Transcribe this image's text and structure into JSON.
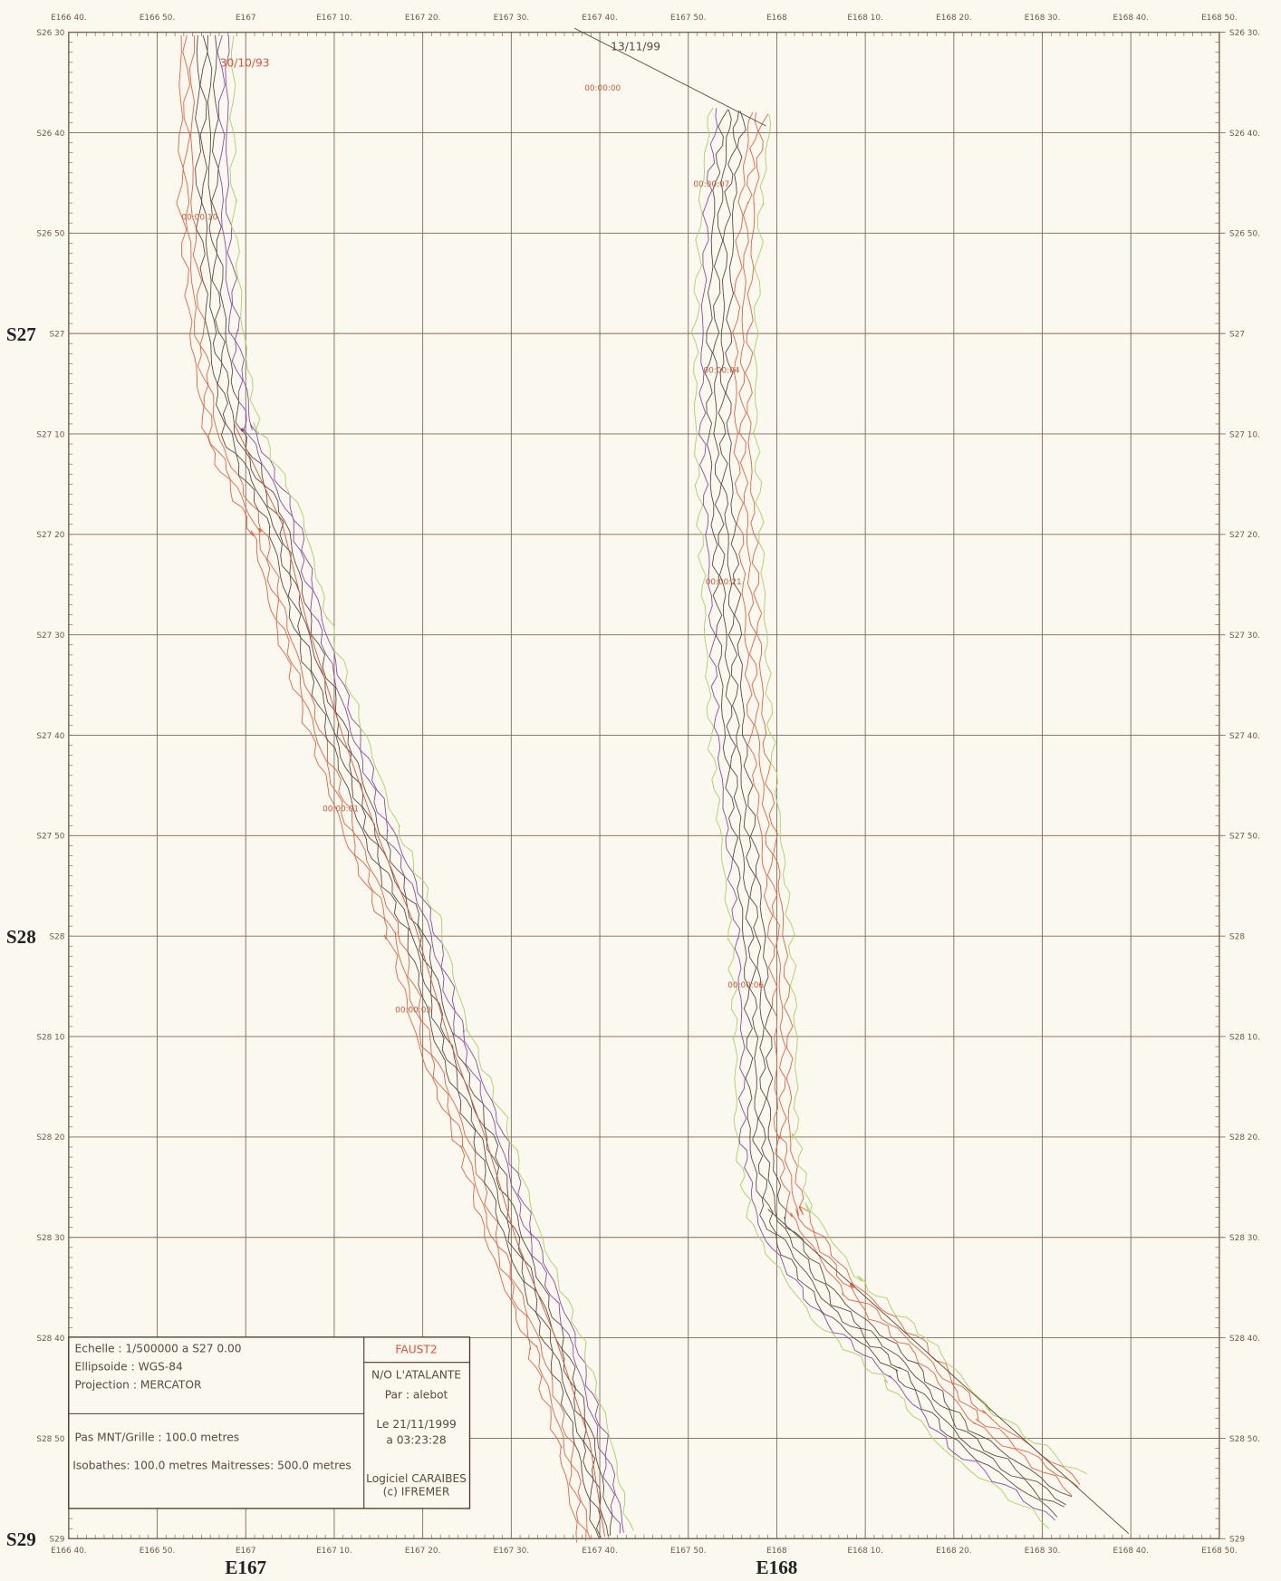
{
  "map": {
    "top_labels": [
      "E166 40.",
      "E166 50.",
      "E167",
      "E167 10.",
      "E167 20.",
      "E167 30.",
      "E167 40.",
      "E167 50.",
      "E168",
      "E168 10.",
      "E168 20.",
      "E168 30.",
      "E168 40.",
      "E168 50."
    ],
    "bottom_labels": [
      "E166 40.",
      "E166 50.",
      "E167",
      "E167 10.",
      "E167 20.",
      "E167 30.",
      "E167 40.",
      "E167 50.",
      "E168",
      "E168 10.",
      "E168 20.",
      "E168 30.",
      "E168 40.",
      "E168 50."
    ],
    "left_labels": [
      "S26 30",
      "S26 40",
      "S26 50",
      "S27",
      "S27 10",
      "S27 20",
      "S27 30",
      "S27 40",
      "S27 50",
      "S28",
      "S28 10",
      "S28 20",
      "S28 30",
      "S28 40",
      "S28 50",
      "S29"
    ],
    "right_labels": [
      "S26 30.",
      "S26 40.",
      "S26 50.",
      "S27",
      "S27 10.",
      "S27 20.",
      "S27 30.",
      "S27 40.",
      "S27 50.",
      "S28",
      "S28 10.",
      "S28 20.",
      "S28 30.",
      "S28 40.",
      "S28 50.",
      "S29"
    ],
    "big_lat_labels": [
      "S27",
      "S28",
      "S29"
    ],
    "big_lon_labels": [
      "E167",
      "E168"
    ],
    "annotations": [
      "30/10/93",
      "13/11/99"
    ],
    "time_labels": [
      "00:00:10",
      "00:00:00",
      "00:00:07",
      "00:00:04",
      "00:00:21",
      "00:00:01",
      "00:00:03",
      "00:00:06"
    ]
  },
  "legend_box": {
    "left": [
      "Echelle : 1/500000 a S27 0.00",
      "Ellipsoide : WGS-84",
      "Projection : MERCATOR",
      "Pas MNT/Grille : 100.0 metres",
      "Isobathes: 100.0 metres  Maitresses:  500.0 metres"
    ],
    "right": [
      "FAUST2",
      "N/O L'ATALANTE",
      "Par : alebot",
      "Le 21/11/1999",
      "a 03:23:28",
      "Logiciel CARAIBES",
      "(c) IFREMER"
    ]
  }
}
